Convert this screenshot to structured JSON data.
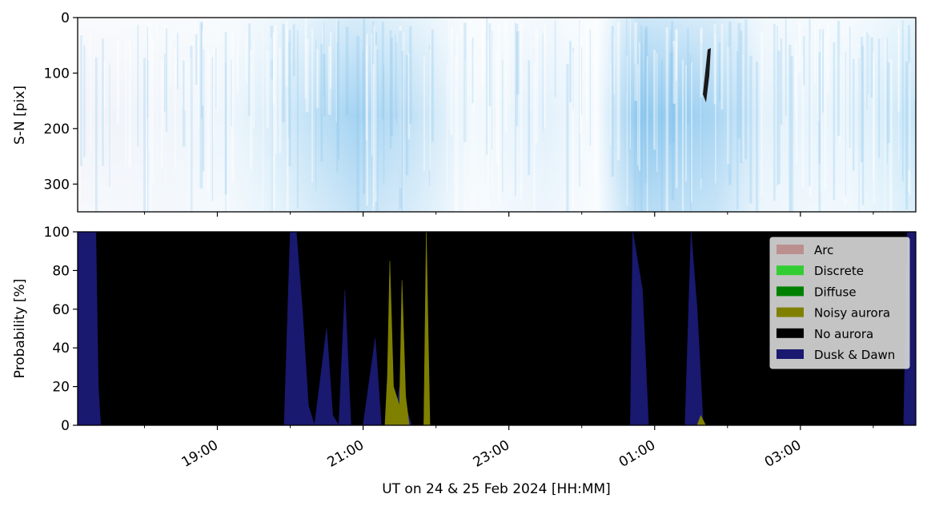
{
  "chart_data": [
    {
      "type": "heatmap",
      "ylabel": "S-N [pix]",
      "ylim": [
        350,
        0
      ],
      "yticks": [
        0,
        100,
        200,
        300
      ],
      "ytick_labels": [
        "0",
        "100",
        "200",
        "300"
      ],
      "x_range": [
        "2024-02-24 17:05",
        "2024-02-25 04:35"
      ],
      "description_colors": {
        "background": "#ffffff",
        "tone": "#8ec8ee",
        "dark_streak": "#1a1a1a"
      }
    },
    {
      "type": "area",
      "ylabel": "Probability [%]",
      "xlabel": "UT on 24 & 25 Feb 2024 [HH:MM]",
      "ylim": [
        0,
        100
      ],
      "yticks": [
        0,
        20,
        40,
        60,
        80,
        100
      ],
      "ytick_labels": [
        "0",
        "20",
        "40",
        "60",
        "80",
        "100"
      ],
      "x_range": [
        "2024-02-24 17:05",
        "2024-02-25 04:35"
      ],
      "xticks": [
        "2024-02-24 19:00",
        "2024-02-24 21:00",
        "2024-02-24 23:00",
        "2024-02-25 01:00",
        "2024-02-25 03:00"
      ],
      "xtick_labels": [
        "19:00",
        "21:00",
        "23:00",
        "01:00",
        "03:00"
      ],
      "minor_xticks": [
        "2024-02-24 18:00",
        "2024-02-24 20:00",
        "2024-02-24 22:00",
        "2024-02-25 00:00",
        "2024-02-25 02:00",
        "2024-02-25 04:00"
      ],
      "legend": {
        "position": "upper-right",
        "entries": [
          {
            "label": "Arc",
            "color": "#bc8f8f"
          },
          {
            "label": "Discrete",
            "color": "#32cd32"
          },
          {
            "label": "Diffuse",
            "color": "#008000"
          },
          {
            "label": "Noisy aurora",
            "color": "#808000"
          },
          {
            "label": "No aurora",
            "color": "#000000"
          },
          {
            "label": "Dusk & Dawn",
            "color": "#191970"
          }
        ]
      },
      "series": [
        {
          "name": "Dusk & Dawn",
          "color": "#191970",
          "points": [
            [
              "2024-02-24 17:05",
              100
            ],
            [
              "2024-02-24 17:15",
              100
            ],
            [
              "2024-02-24 17:20",
              100
            ],
            [
              "2024-02-24 17:22",
              20
            ],
            [
              "2024-02-24 17:24",
              0
            ],
            [
              "2024-02-24 17:30",
              0
            ],
            [
              "2024-02-24 19:55",
              0
            ],
            [
              "2024-02-24 20:00",
              100
            ],
            [
              "2024-02-24 20:05",
              100
            ],
            [
              "2024-02-24 20:10",
              60
            ],
            [
              "2024-02-24 20:15",
              10
            ],
            [
              "2024-02-24 20:20",
              0
            ],
            [
              "2024-02-24 20:30",
              50
            ],
            [
              "2024-02-24 20:35",
              5
            ],
            [
              "2024-02-24 20:40",
              0
            ],
            [
              "2024-02-24 20:45",
              70
            ],
            [
              "2024-02-24 20:50",
              0
            ],
            [
              "2024-02-24 21:00",
              0
            ],
            [
              "2024-02-24 21:10",
              45
            ],
            [
              "2024-02-24 21:15",
              0
            ],
            [
              "2024-02-24 21:25",
              0
            ],
            [
              "2024-02-24 21:30",
              20
            ],
            [
              "2024-02-24 21:40",
              0
            ],
            [
              "2024-02-25 00:40",
              0
            ],
            [
              "2024-02-25 00:42",
              100
            ],
            [
              "2024-02-25 00:50",
              70
            ],
            [
              "2024-02-25 00:55",
              0
            ],
            [
              "2024-02-25 01:25",
              0
            ],
            [
              "2024-02-25 01:30",
              100
            ],
            [
              "2024-02-25 01:35",
              60
            ],
            [
              "2024-02-25 01:40",
              0
            ],
            [
              "2024-02-25 04:25",
              0
            ],
            [
              "2024-02-25 04:28",
              100
            ],
            [
              "2024-02-25 04:35",
              100
            ]
          ]
        },
        {
          "name": "Noisy aurora",
          "color": "#808000",
          "points": [
            [
              "2024-02-24 21:18",
              0
            ],
            [
              "2024-02-24 21:20",
              25
            ],
            [
              "2024-02-24 21:22",
              85
            ],
            [
              "2024-02-24 21:25",
              20
            ],
            [
              "2024-02-24 21:30",
              10
            ],
            [
              "2024-02-24 21:32",
              75
            ],
            [
              "2024-02-24 21:35",
              15
            ],
            [
              "2024-02-24 21:38",
              0
            ],
            [
              "2024-02-24 21:50",
              0
            ],
            [
              "2024-02-24 21:52",
              100
            ],
            [
              "2024-02-24 21:55",
              0
            ],
            [
              "2024-02-25 01:35",
              0
            ],
            [
              "2024-02-25 01:38",
              5
            ],
            [
              "2024-02-25 01:42",
              0
            ]
          ]
        },
        {
          "name": "No aurora",
          "color": "#000000",
          "points": []
        }
      ]
    }
  ]
}
